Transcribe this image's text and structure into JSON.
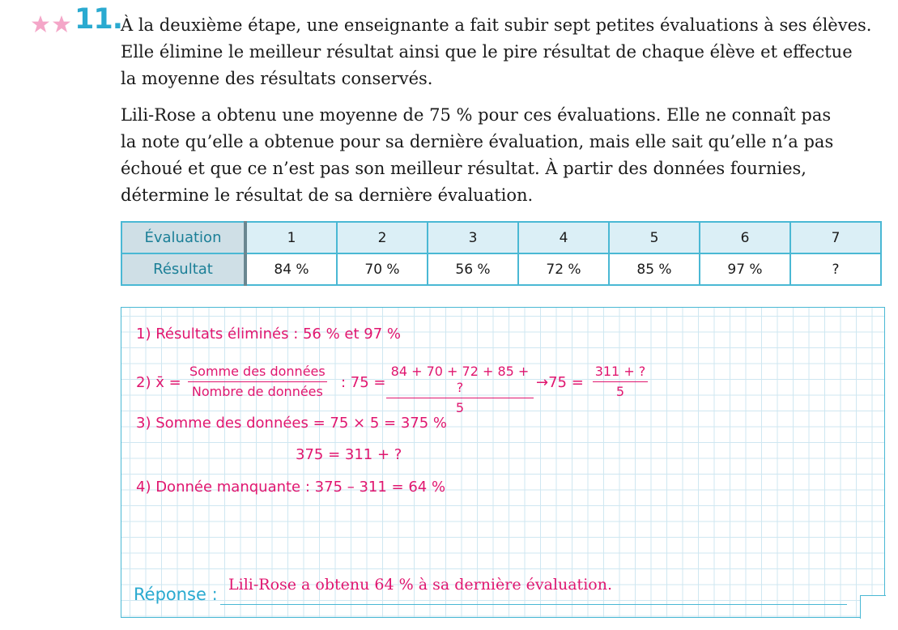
{
  "exercise": {
    "number": "11.",
    "difficulty_stars": 2,
    "star_color": "#f4a6c8",
    "number_color": "#2aaad0",
    "paragraph1": [
      "À la deuxième étape, une enseignante a fait subir sept petites évaluations à ses élèves.",
      "Elle élimine le meilleur résultat ainsi que le pire résultat de chaque élève et effectue",
      "la moyenne des résultats conservés."
    ],
    "paragraph2": [
      "Lili-Rose a obtenu une moyenne de 75 % pour ces évaluations. Elle ne connaît pas",
      "la note qu’elle a obtenue pour sa dernière évaluation, mais elle sait qu’elle n’a pas",
      "échoué et que ce n’est pas son meilleur résultat. À partir des données fournies,",
      "détermine le résultat de sa dernière évaluation."
    ]
  },
  "table": {
    "header_label": "Évaluation",
    "row_label": "Résultat",
    "columns": [
      "1",
      "2",
      "3",
      "4",
      "5",
      "6",
      "7"
    ],
    "results": [
      "84 %",
      "70 %",
      "56 %",
      "72 %",
      "85 %",
      "97 %",
      "?"
    ]
  },
  "solution": {
    "color": "#e0166f",
    "step1": "1)  Résultats éliminés : 56 % et 97 %",
    "step2": {
      "prefix": "2)  x̄ =",
      "frac1_num": "Somme des données",
      "frac1_den": "Nombre de données",
      "mid": ": 75 =",
      "frac2_num": "84 + 70 + 72 + 85 + ?",
      "frac2_den": "5",
      "arrow": "→75 =",
      "frac3_num": "311 + ?",
      "frac3_den": "5"
    },
    "step3": "3)  Somme des données = 75 × 5 = 375 %",
    "step3b": "375 = 311 + ?",
    "step4": "4)  Donnée manquante : 375 – 311 = 64 %"
  },
  "answer": {
    "label": "Réponse :",
    "text": "Lili-Rose a obtenu 64 % à sa dernière évaluation."
  }
}
